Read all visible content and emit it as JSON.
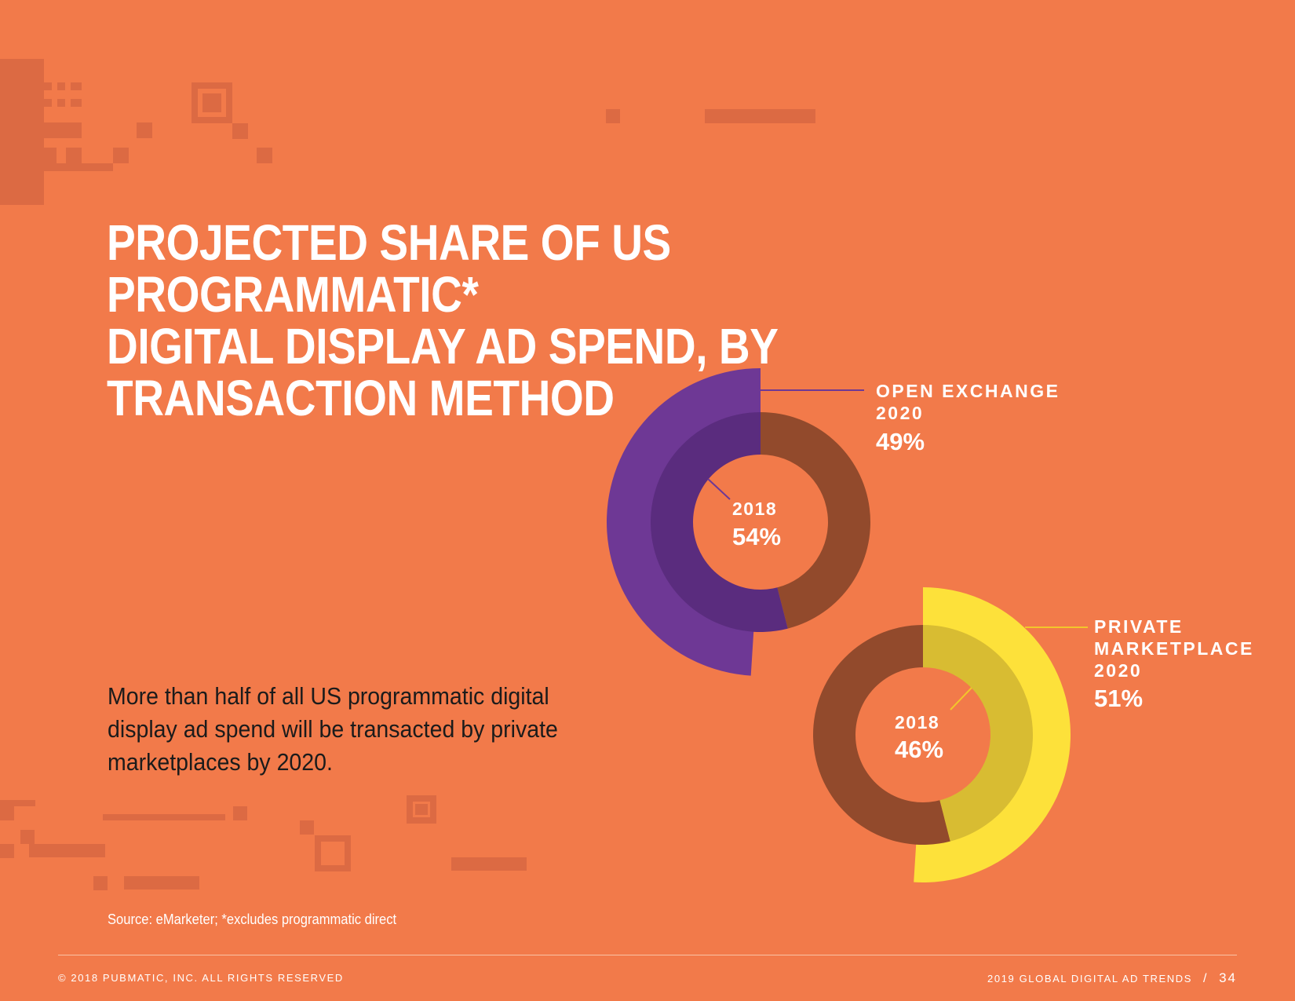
{
  "page": {
    "title_lines": [
      "PROJECTED SHARE OF US PROGRAMMATIC*",
      "DIGITAL DISPLAY AD SPEND, BY",
      "TRANSACTION METHOD"
    ],
    "body": "More than half of all US programmatic digital display ad spend will be transacted by private marketplaces by 2020.",
    "source": "Source: eMarketer; *excludes programmatic direct",
    "footer_left": "© 2018 PUBMATIC, INC. ALL RIGHTS RESERVED",
    "footer_right": "2019 GLOBAL DIGITAL AD TRENDS",
    "footer_sep": "/",
    "page_number": "34"
  },
  "chart_data": [
    {
      "type": "pie",
      "series": "OPEN EXCHANGE",
      "label_lines": [
        "OPEN EXCHANGE",
        "2020"
      ],
      "outer_value": 49,
      "outer_label": "49%",
      "inner_year": "2018",
      "inner_value": 54,
      "inner_label": "54%",
      "colors": {
        "outer": "#6E3895",
        "inner": "#5A2C7E",
        "remainder": "#924A2C",
        "leader": "#6E3895"
      }
    },
    {
      "type": "pie",
      "series": "PRIVATE MARKETPLACE",
      "label_lines": [
        "PRIVATE",
        "MARKETPLACE",
        "2020"
      ],
      "outer_value": 51,
      "outer_label": "51%",
      "inner_year": "2018",
      "inner_value": 46,
      "inner_label": "46%",
      "colors": {
        "outer": "#FDE13A",
        "inner": "#D8BC32",
        "remainder": "#924A2C",
        "leader": "#F3C52B"
      }
    }
  ]
}
